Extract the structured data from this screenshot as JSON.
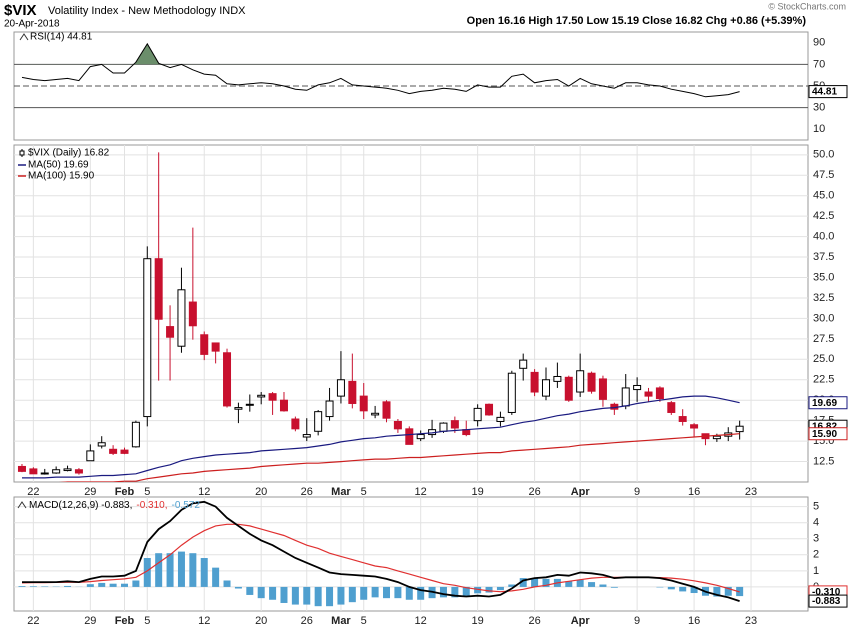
{
  "chart_data": [
    {
      "type": "line",
      "name": "RSI(14) 44.81",
      "color": "#000000",
      "fill_color": "#6b8e6b",
      "values": [
        58,
        56,
        55,
        56,
        57,
        55,
        68,
        70,
        62,
        62,
        72,
        89,
        71,
        67,
        70,
        65,
        61,
        60,
        52,
        51,
        52,
        53,
        52,
        50,
        47,
        46,
        51,
        53,
        57,
        51,
        50,
        49,
        48,
        46,
        43,
        45,
        46,
        48,
        47,
        45,
        51,
        49,
        49,
        59,
        61,
        53,
        55,
        56,
        50,
        57,
        52,
        50,
        48,
        53,
        53,
        51,
        50,
        47,
        45,
        43,
        40,
        41,
        42,
        44.81
      ],
      "xlim": [
        -0.7,
        69
      ],
      "ylim": [
        0,
        100
      ],
      "yticks": [
        10,
        30,
        50,
        70,
        90
      ],
      "grid": false,
      "levels": [
        30,
        50,
        70
      ],
      "level_styles": [
        "solid",
        "dashed",
        "solid"
      ],
      "fill_above": 70,
      "tags": [
        {
          "value": 44.81,
          "label": "44.81",
          "color": "#000000"
        }
      ]
    },
    {
      "type": "candlestick",
      "title": "$VIX",
      "subtitle": "Volatility Index - New Methodology INDX",
      "date": "20-Apr-2018",
      "ohlc_text": "Open 16.16  High 17.50  Low 15.19  Close 16.82  Chg +0.86 (+5.39%)",
      "source": "© StockCharts.com",
      "name": "$VIX (Daily) 16.82",
      "up_color": "#ffffff",
      "down_color": "#c8102e",
      "open": [
        11.9,
        11.6,
        11.1,
        11.1,
        11.4,
        11.5,
        12.6,
        14.4,
        14.0,
        13.9,
        14.3,
        18.0,
        37.3,
        29.0,
        26.6,
        32.0,
        28.0,
        27.0,
        25.8,
        18.9,
        19.5,
        20.4,
        20.8,
        20.0,
        17.7,
        15.5,
        16.2,
        18.0,
        20.5,
        22.3,
        20.5,
        18.2,
        19.8,
        17.4,
        16.5,
        15.3,
        15.8,
        16.2,
        17.5,
        16.4,
        17.5,
        19.5,
        17.4,
        18.5,
        23.9,
        23.4,
        20.5,
        22.3,
        22.8,
        21.0,
        23.3,
        22.6,
        19.5,
        19.3,
        21.3,
        21.0,
        21.5,
        19.7,
        18.0,
        17.0,
        15.9,
        15.3,
        15.6,
        16.16
      ],
      "high": [
        12.2,
        11.8,
        11.6,
        11.9,
        12.0,
        11.7,
        14.6,
        15.6,
        14.5,
        14.2,
        17.5,
        38.8,
        50.3,
        31.6,
        36.2,
        41.1,
        28.4,
        27.0,
        26.3,
        19.7,
        20.7,
        21.0,
        21.0,
        21.0,
        18.0,
        17.8,
        18.8,
        21.5,
        26.0,
        25.7,
        22.1,
        19.3,
        20.0,
        17.7,
        16.8,
        16.3,
        17.6,
        17.3,
        18.0,
        17.5,
        19.5,
        19.6,
        18.6,
        23.6,
        25.7,
        23.8,
        24.0,
        24.6,
        23.0,
        25.7,
        23.5,
        23.0,
        19.7,
        23.2,
        22.8,
        21.5,
        21.7,
        19.9,
        18.9,
        17.2,
        15.9,
        15.9,
        16.7,
        17.5
      ],
      "low": [
        11.2,
        11.0,
        10.9,
        11.0,
        11.3,
        10.9,
        12.6,
        14.1,
        13.3,
        13.4,
        14.2,
        16.8,
        22.4,
        22.4,
        25.8,
        27.4,
        24.9,
        24.5,
        19.1,
        17.2,
        18.6,
        19.5,
        18.2,
        18.6,
        16.2,
        15.0,
        15.7,
        17.5,
        19.6,
        19.0,
        17.7,
        17.8,
        17.3,
        16.0,
        14.6,
        15.0,
        15.4,
        16.0,
        16.0,
        15.6,
        16.8,
        18.1,
        16.8,
        18.2,
        22.4,
        20.5,
        20.0,
        21.5,
        19.8,
        20.4,
        20.8,
        19.2,
        18.2,
        18.9,
        19.8,
        19.8,
        19.8,
        18.2,
        16.9,
        15.5,
        14.5,
        14.9,
        15.0,
        15.19
      ],
      "close": [
        11.3,
        11.0,
        11.1,
        11.5,
        11.6,
        11.1,
        13.8,
        14.8,
        13.5,
        13.5,
        17.3,
        37.3,
        29.9,
        27.7,
        33.5,
        29.1,
        25.6,
        26.0,
        19.3,
        19.1,
        19.5,
        20.6,
        20.0,
        18.7,
        16.5,
        15.8,
        18.6,
        19.9,
        22.5,
        19.6,
        18.7,
        18.4,
        17.8,
        16.5,
        14.6,
        15.8,
        16.4,
        17.2,
        16.6,
        15.8,
        19.0,
        18.2,
        17.9,
        23.3,
        24.9,
        21.0,
        22.5,
        22.9,
        20.0,
        23.6,
        21.1,
        20.1,
        18.9,
        21.5,
        21.8,
        20.5,
        20.2,
        18.5,
        17.4,
        16.6,
        15.3,
        15.6,
        16.0,
        16.82
      ],
      "series": [
        {
          "name": "MA(50) 19.69",
          "color": "#1a1a80",
          "values": [
            10.5,
            10.5,
            10.5,
            10.6,
            10.6,
            10.6,
            10.7,
            10.8,
            10.8,
            10.9,
            11.0,
            11.4,
            11.8,
            12.1,
            12.6,
            12.9,
            13.1,
            13.3,
            13.4,
            13.5,
            13.6,
            13.8,
            13.9,
            14.0,
            14.1,
            14.2,
            14.4,
            14.6,
            14.9,
            15.1,
            15.3,
            15.4,
            15.6,
            15.7,
            15.8,
            15.9,
            16.0,
            16.2,
            16.3,
            16.4,
            16.5,
            16.6,
            16.7,
            17.0,
            17.3,
            17.5,
            17.8,
            18.1,
            18.3,
            18.6,
            18.8,
            19.0,
            19.1,
            19.3,
            19.6,
            19.8,
            20.0,
            20.2,
            20.4,
            20.5,
            20.5,
            20.3,
            20.0,
            19.69
          ]
        },
        {
          "name": "MA(100) 15.90",
          "color": "#cc1f1f",
          "values": [
            9.9,
            9.9,
            9.9,
            9.9,
            10.0,
            10.0,
            10.0,
            10.0,
            10.0,
            10.1,
            10.1,
            10.4,
            10.6,
            10.8,
            11.0,
            11.1,
            11.3,
            11.4,
            11.5,
            11.6,
            11.7,
            11.9,
            12.0,
            12.1,
            12.2,
            12.3,
            12.3,
            12.4,
            12.5,
            12.6,
            12.7,
            12.8,
            12.8,
            12.9,
            13.0,
            13.0,
            13.1,
            13.2,
            13.3,
            13.4,
            13.5,
            13.6,
            13.6,
            13.8,
            13.9,
            14.0,
            14.1,
            14.2,
            14.3,
            14.5,
            14.6,
            14.7,
            14.8,
            14.9,
            15.0,
            15.1,
            15.2,
            15.3,
            15.4,
            15.5,
            15.6,
            15.7,
            15.8,
            15.9
          ]
        }
      ],
      "xlim": [
        -0.7,
        69
      ],
      "ylim": [
        10,
        51.2
      ],
      "grid": true,
      "yticks": [
        12.5,
        {
          "value": 15,
          "label": "15.0"
        },
        17.5,
        {
          "value": 20,
          "label": "20.0"
        },
        22.5,
        {
          "value": 25,
          "label": "25.0"
        },
        27.5,
        {
          "value": 30,
          "label": "30.0"
        },
        32.5,
        {
          "value": 35,
          "label": "35.0"
        },
        37.5,
        {
          "value": 40,
          "label": "40.0"
        },
        42.5,
        {
          "value": 45,
          "label": "45.0"
        },
        47.5,
        {
          "value": 50,
          "label": "50.0"
        }
      ],
      "xticks": [
        {
          "value": 1,
          "label": "22"
        },
        {
          "value": 6,
          "label": "29"
        },
        {
          "value": 9,
          "label": "Feb"
        },
        {
          "value": 11,
          "label": "5"
        },
        {
          "value": 16,
          "label": "12"
        },
        {
          "value": 21,
          "label": "20"
        },
        {
          "value": 25,
          "label": "26"
        },
        {
          "value": 28,
          "label": "Mar"
        },
        {
          "value": 30,
          "label": "5"
        },
        {
          "value": 35,
          "label": "12"
        },
        {
          "value": 40,
          "label": "19"
        },
        {
          "value": 45,
          "label": "26"
        },
        {
          "value": 49,
          "label": "Apr"
        },
        {
          "value": 54,
          "label": "9"
        },
        {
          "value": 59,
          "label": "16"
        },
        {
          "value": 64,
          "label": "23"
        }
      ],
      "tags": [
        {
          "value": 19.69,
          "label": "19.69",
          "color": "#1a1a80"
        },
        {
          "value": 16.82,
          "label": "16.82",
          "color": "#000000"
        },
        {
          "value": 15.9,
          "label": "15.90",
          "color": "#cc1f1f"
        }
      ]
    },
    {
      "type": "macd",
      "legend": [
        "MACD(12,26,9) -0.883,",
        "-0.310,",
        "-0.572"
      ],
      "series": [
        {
          "name": "MACD",
          "color": "#000000",
          "values": [
            0.3,
            0.3,
            0.3,
            0.3,
            0.35,
            0.3,
            0.5,
            0.65,
            0.65,
            0.7,
            1.0,
            2.8,
            3.6,
            4.1,
            4.8,
            5.2,
            5.3,
            5.0,
            4.3,
            3.8,
            3.3,
            2.9,
            2.6,
            2.2,
            1.8,
            1.5,
            1.2,
            0.9,
            0.8,
            0.75,
            0.7,
            0.65,
            0.5,
            0.3,
            0.0,
            -0.2,
            -0.3,
            -0.45,
            -0.55,
            -0.6,
            -0.55,
            -0.6,
            -0.5,
            -0.1,
            0.4,
            0.55,
            0.6,
            0.75,
            0.7,
            0.9,
            0.85,
            0.75,
            0.55,
            0.6,
            0.6,
            0.6,
            0.55,
            0.4,
            0.2,
            0.0,
            -0.3,
            -0.5,
            -0.65,
            -0.883
          ]
        },
        {
          "name": "Signal",
          "color": "#e03030",
          "values": [
            0.25,
            0.26,
            0.27,
            0.28,
            0.29,
            0.29,
            0.33,
            0.4,
            0.45,
            0.5,
            0.6,
            1.0,
            1.5,
            2.0,
            2.6,
            3.1,
            3.5,
            3.8,
            3.9,
            3.9,
            3.8,
            3.6,
            3.4,
            3.2,
            2.9,
            2.6,
            2.4,
            2.1,
            1.9,
            1.7,
            1.5,
            1.3,
            1.2,
            1.0,
            0.8,
            0.6,
            0.4,
            0.2,
            0.1,
            -0.05,
            -0.15,
            -0.25,
            -0.3,
            -0.25,
            -0.15,
            0.0,
            0.1,
            0.25,
            0.35,
            0.45,
            0.55,
            0.6,
            0.6,
            0.6,
            0.6,
            0.6,
            0.58,
            0.55,
            0.48,
            0.38,
            0.25,
            0.1,
            -0.1,
            -0.31
          ]
        },
        {
          "name": "Histogram",
          "color": "#4f9fcf",
          "values": [
            0.05,
            0.04,
            0.03,
            0.02,
            0.06,
            0.01,
            0.17,
            0.25,
            0.2,
            0.2,
            0.4,
            1.8,
            2.1,
            2.1,
            2.2,
            2.1,
            1.8,
            1.2,
            0.4,
            -0.1,
            -0.5,
            -0.7,
            -0.8,
            -1.0,
            -1.1,
            -1.1,
            -1.2,
            -1.2,
            -1.1,
            -0.95,
            -0.8,
            -0.65,
            -0.7,
            -0.7,
            -0.8,
            -0.8,
            -0.7,
            -0.65,
            -0.65,
            -0.55,
            -0.4,
            -0.35,
            -0.2,
            0.15,
            0.55,
            0.55,
            0.5,
            0.5,
            0.35,
            0.45,
            0.3,
            0.15,
            -0.05,
            0.0,
            0.0,
            0.0,
            -0.03,
            -0.15,
            -0.28,
            -0.38,
            -0.55,
            -0.6,
            -0.55,
            -0.572
          ]
        }
      ],
      "xlim": [
        -0.7,
        69
      ],
      "ylim": [
        -1.5,
        5.6
      ],
      "yticks": [
        0,
        1,
        2,
        3,
        4,
        5
      ],
      "grid": true,
      "xticks": [
        {
          "value": 1,
          "label": "22"
        },
        {
          "value": 6,
          "label": "29"
        },
        {
          "value": 9,
          "label": "Feb"
        },
        {
          "value": 11,
          "label": "5"
        },
        {
          "value": 16,
          "label": "12"
        },
        {
          "value": 21,
          "label": "20"
        },
        {
          "value": 25,
          "label": "26"
        },
        {
          "value": 28,
          "label": "Mar"
        },
        {
          "value": 30,
          "label": "5"
        },
        {
          "value": 35,
          "label": "12"
        },
        {
          "value": 40,
          "label": "19"
        },
        {
          "value": 45,
          "label": "26"
        },
        {
          "value": 49,
          "label": "Apr"
        },
        {
          "value": 54,
          "label": "9"
        },
        {
          "value": 59,
          "label": "16"
        },
        {
          "value": 64,
          "label": "23"
        }
      ],
      "tags": [
        {
          "value": -0.31,
          "label": "-0.310",
          "color": "#e03030"
        },
        {
          "value": -0.883,
          "label": "-0.883",
          "color": "#000000"
        }
      ]
    }
  ]
}
